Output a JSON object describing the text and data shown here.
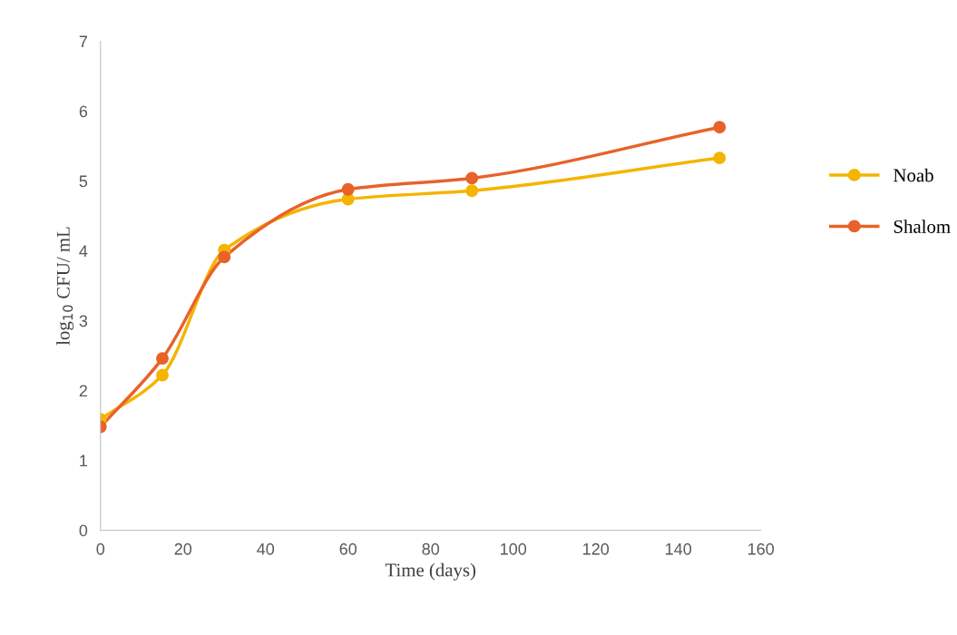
{
  "chart_data": {
    "type": "line",
    "xlabel": "Time (days)",
    "ylabel": "log$_{10}$ CFU/ mL",
    "x": [
      0,
      15,
      30,
      60,
      90,
      150
    ],
    "series": [
      {
        "name": "Noab",
        "color": "#f5b400",
        "values": [
          1.59,
          2.22,
          4.01,
          4.74,
          4.86,
          5.33
        ]
      },
      {
        "name": "Shalom",
        "color": "#e8622a",
        "values": [
          1.48,
          2.46,
          3.91,
          4.88,
          5.04,
          5.77
        ]
      }
    ],
    "xlim": [
      0,
      160
    ],
    "xticks": [
      0,
      20,
      40,
      60,
      80,
      100,
      120,
      140,
      160
    ],
    "ylim": [
      0,
      7
    ],
    "yticks": [
      0,
      1,
      2,
      3,
      4,
      5,
      6,
      7
    ],
    "grid": false,
    "legend": "right",
    "marker": "circle",
    "line_style": "solid"
  }
}
